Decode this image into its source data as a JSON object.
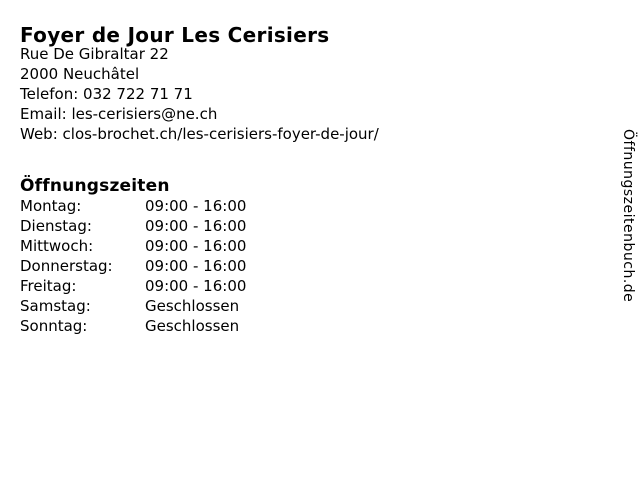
{
  "colors": {
    "background": "#ffffff",
    "text": "#000000"
  },
  "page": {
    "title": "Foyer de Jour Les Cerisiers"
  },
  "contact": {
    "address_line1": "Rue De Gibraltar 22",
    "address_line2": "2000 Neuchâtel",
    "phone_line": "Telefon: 032 722 71 71",
    "email_line": "Email: les-cerisiers@ne.ch",
    "web_line": "Web: clos-brochet.ch/les-cerisiers-foyer-de-jour/"
  },
  "hours": {
    "heading": "Öffnungszeiten",
    "rows": [
      {
        "day": "Montag:",
        "value": "09:00 - 16:00"
      },
      {
        "day": "Dienstag:",
        "value": "09:00 - 16:00"
      },
      {
        "day": "Mittwoch:",
        "value": "09:00 - 16:00"
      },
      {
        "day": "Donnerstag:",
        "value": "09:00 - 16:00"
      },
      {
        "day": "Freitag:",
        "value": "09:00 - 16:00"
      },
      {
        "day": "Samstag:",
        "value": "Geschlossen"
      },
      {
        "day": "Sonntag:",
        "value": "Geschlossen"
      }
    ]
  },
  "watermark": {
    "label": "Öffnungszeitenbuch.de"
  }
}
